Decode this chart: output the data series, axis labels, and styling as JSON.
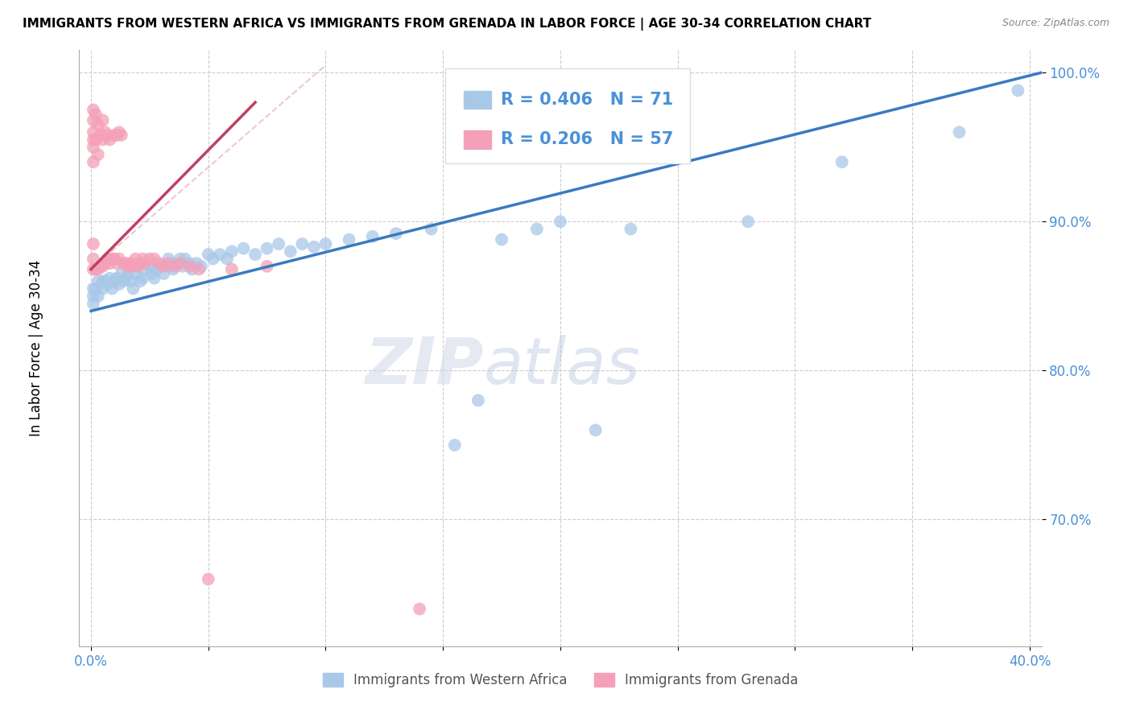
{
  "title": "IMMIGRANTS FROM WESTERN AFRICA VS IMMIGRANTS FROM GRENADA IN LABOR FORCE | AGE 30-34 CORRELATION CHART",
  "source": "Source: ZipAtlas.com",
  "xlabel": "",
  "ylabel": "In Labor Force | Age 30-34",
  "xlim": [
    -0.005,
    0.405
  ],
  "ylim": [
    0.615,
    1.015
  ],
  "xticks": [
    0.0,
    0.05,
    0.1,
    0.15,
    0.2,
    0.25,
    0.3,
    0.35,
    0.4
  ],
  "yticks": [
    0.7,
    0.8,
    0.9,
    1.0
  ],
  "ytick_labels": [
    "70.0%",
    "80.0%",
    "90.0%",
    "100.0%"
  ],
  "xtick_labels": [
    "0.0%",
    "",
    "",
    "",
    "",
    "",
    "",
    "",
    "40.0%"
  ],
  "blue_color": "#a8c8e8",
  "pink_color": "#f4a0b8",
  "blue_line_color": "#3a7abf",
  "pink_line_color": "#c04060",
  "pink_line_dashed_color": "#e8a0b8",
  "R_blue": 0.406,
  "N_blue": 71,
  "R_pink": 0.206,
  "N_pink": 57,
  "legend_label_blue": "Immigrants from Western Africa",
  "legend_label_pink": "Immigrants from Grenada",
  "watermark_zip": "ZIP",
  "watermark_atlas": "atlas",
  "blue_scatter_x": [
    0.001,
    0.001,
    0.001,
    0.002,
    0.003,
    0.003,
    0.005,
    0.005,
    0.006,
    0.007,
    0.008,
    0.009,
    0.01,
    0.011,
    0.012,
    0.013,
    0.014,
    0.015,
    0.016,
    0.017,
    0.018,
    0.019,
    0.02,
    0.021,
    0.022,
    0.023,
    0.025,
    0.026,
    0.027,
    0.028,
    0.03,
    0.031,
    0.033,
    0.034,
    0.035,
    0.036,
    0.038,
    0.039,
    0.04,
    0.042,
    0.043,
    0.045,
    0.047,
    0.05,
    0.052,
    0.055,
    0.058,
    0.06,
    0.065,
    0.07,
    0.075,
    0.08,
    0.085,
    0.09,
    0.095,
    0.1,
    0.11,
    0.12,
    0.13,
    0.145,
    0.155,
    0.165,
    0.175,
    0.19,
    0.2,
    0.215,
    0.23,
    0.28,
    0.32,
    0.37,
    0.395
  ],
  "blue_scatter_y": [
    0.855,
    0.85,
    0.845,
    0.855,
    0.86,
    0.85,
    0.86,
    0.855,
    0.86,
    0.858,
    0.862,
    0.855,
    0.86,
    0.862,
    0.858,
    0.865,
    0.86,
    0.862,
    0.865,
    0.86,
    0.855,
    0.865,
    0.87,
    0.86,
    0.862,
    0.868,
    0.87,
    0.865,
    0.862,
    0.868,
    0.87,
    0.865,
    0.875,
    0.87,
    0.868,
    0.872,
    0.875,
    0.87,
    0.875,
    0.872,
    0.868,
    0.872,
    0.87,
    0.878,
    0.875,
    0.878,
    0.875,
    0.88,
    0.882,
    0.878,
    0.882,
    0.885,
    0.88,
    0.885,
    0.883,
    0.885,
    0.888,
    0.89,
    0.892,
    0.895,
    0.75,
    0.78,
    0.888,
    0.895,
    0.9,
    0.76,
    0.895,
    0.9,
    0.94,
    0.96,
    0.988
  ],
  "pink_scatter_x": [
    0.001,
    0.001,
    0.001,
    0.001,
    0.001,
    0.001,
    0.001,
    0.001,
    0.001,
    0.002,
    0.002,
    0.002,
    0.003,
    0.003,
    0.003,
    0.004,
    0.004,
    0.005,
    0.005,
    0.005,
    0.006,
    0.006,
    0.007,
    0.007,
    0.008,
    0.008,
    0.009,
    0.01,
    0.01,
    0.011,
    0.011,
    0.012,
    0.012,
    0.013,
    0.014,
    0.015,
    0.016,
    0.017,
    0.018,
    0.019,
    0.02,
    0.021,
    0.022,
    0.023,
    0.025,
    0.027,
    0.029,
    0.031,
    0.033,
    0.036,
    0.038,
    0.042,
    0.046,
    0.05,
    0.06,
    0.075,
    0.14
  ],
  "pink_scatter_y": [
    0.975,
    0.968,
    0.96,
    0.955,
    0.95,
    0.94,
    0.885,
    0.875,
    0.868,
    0.972,
    0.955,
    0.868,
    0.965,
    0.945,
    0.868,
    0.958,
    0.87,
    0.968,
    0.955,
    0.87,
    0.96,
    0.872,
    0.958,
    0.875,
    0.955,
    0.872,
    0.875,
    0.958,
    0.875,
    0.958,
    0.872,
    0.96,
    0.875,
    0.958,
    0.872,
    0.872,
    0.87,
    0.872,
    0.87,
    0.875,
    0.87,
    0.872,
    0.875,
    0.872,
    0.875,
    0.875,
    0.872,
    0.87,
    0.872,
    0.87,
    0.872,
    0.87,
    0.868,
    0.66,
    0.868,
    0.87,
    0.64
  ],
  "blue_trend_x": [
    0.0,
    0.405
  ],
  "blue_trend_y": [
    0.84,
    1.0
  ],
  "pink_trend_x": [
    0.0,
    0.07
  ],
  "pink_trend_y": [
    0.868,
    0.98
  ]
}
